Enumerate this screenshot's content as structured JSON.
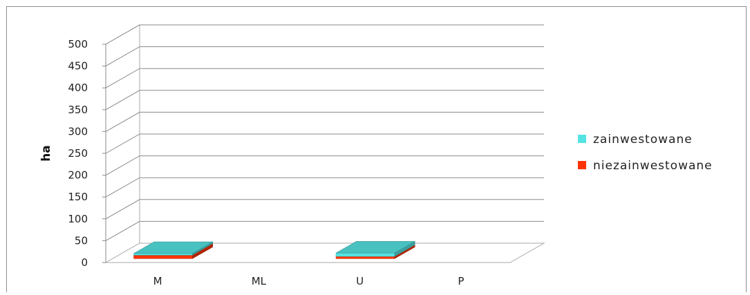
{
  "chart_data": {
    "type": "bar",
    "style": "3d-stacked-column",
    "categories": [
      "M",
      "ML",
      "U",
      "P"
    ],
    "series": [
      {
        "name": "zainwestowane",
        "color": "#55E3E3",
        "values": [
          4,
          0,
          8,
          0
        ]
      },
      {
        "name": "niezainwestowane",
        "color": "#FF3300",
        "values": [
          8,
          0,
          5,
          0
        ]
      }
    ],
    "ylabel": "ha",
    "xlabel": "",
    "ylim": [
      0,
      500
    ],
    "yticks": [
      "0",
      "50",
      "100",
      "150",
      "200",
      "250",
      "300",
      "350",
      "400",
      "450",
      "500"
    ],
    "grid": true,
    "legend_position": "right"
  }
}
